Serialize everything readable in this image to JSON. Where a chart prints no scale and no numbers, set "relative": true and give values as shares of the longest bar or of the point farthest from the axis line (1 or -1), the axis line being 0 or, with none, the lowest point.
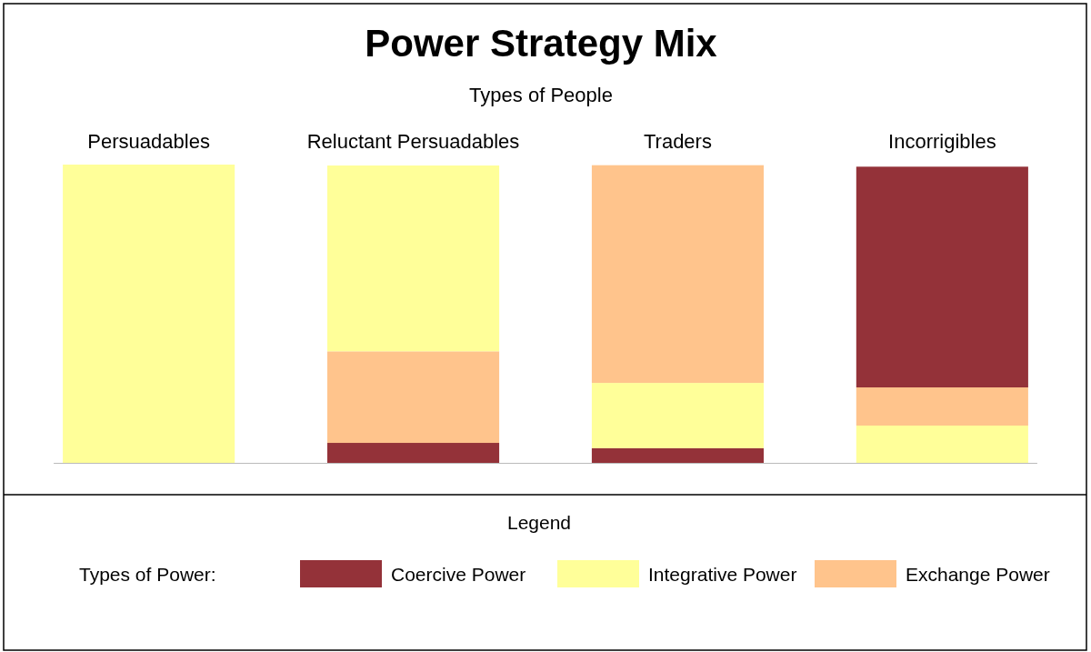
{
  "chart_data": {
    "type": "bar",
    "title": "Power Strategy Mix",
    "xlabel": "Types of People",
    "legend_title": "Legend",
    "annotations": [
      "Types of Power:"
    ],
    "categories": [
      "Persuadables",
      "Reluctant Persuadables",
      "Traders",
      "Incorrigibles"
    ],
    "stacked": true,
    "relative": true,
    "legend": "bottom",
    "series": [
      {
        "name": "Coercive Power",
        "color": "#943239",
        "values": [
          null,
          0.067,
          0.049,
          null
        ]
      },
      {
        "name": "Integrative Power",
        "color": "#ffff99",
        "values": [
          1,
          null,
          0.219,
          0.125
        ]
      },
      {
        "name": "Exchange Power",
        "color": "#ffc48c",
        "values": [
          null,
          0.307,
          0.73,
          0.128
        ]
      },
      {
        "color": "#ffff99",
        "values": [
          null,
          0.623,
          null,
          null
        ]
      },
      {
        "color": "#943239",
        "values": [
          null,
          null,
          null,
          0.74
        ]
      }
    ]
  }
}
